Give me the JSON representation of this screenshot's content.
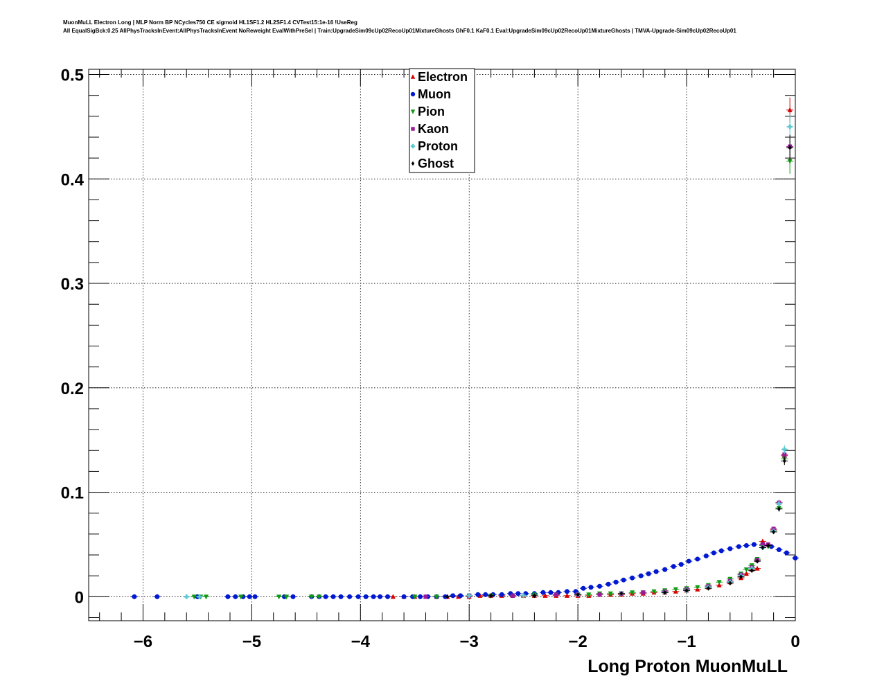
{
  "header": {
    "line1": "MuonMuLL Electron Long | MLP Norm BP NCycles750 CE sigmoid HL1SF1.2 HL2SF1.4 CVTest15:1e-16 !UseReg",
    "line2": "All EqualSigBck:0.25 AllPhysTracksInEvent:AllPhysTracksInEvent NoReweight EvalWithPreSel | Train:UpgradeSim09cUp02RecoUp01MixtureGhosts GhF0.1 KaF0.1 Eval:UpgradeSim09cUp02RecoUp01MixtureGhosts | TMVA-Upgrade-Sim09cUp02RecoUp01"
  },
  "colors": {
    "Electron": "#d40000",
    "Muon": "#0018d0",
    "Pion": "#119a11",
    "Kaon": "#9a1a9a",
    "Proton": "#5ec8d0",
    "Ghost": "#000000"
  },
  "chart_data": {
    "type": "scatter",
    "xlabel": "Long Proton MuonMuLL",
    "ylabel": "",
    "xlim": [
      -6.5,
      0
    ],
    "ylim": [
      -0.023,
      0.505
    ],
    "x_ticks": [
      {
        "value": -6,
        "label": "−6"
      },
      {
        "value": -5,
        "label": "−5"
      },
      {
        "value": -4,
        "label": "−4"
      },
      {
        "value": -3,
        "label": "−3"
      },
      {
        "value": -2,
        "label": "−2"
      },
      {
        "value": -1,
        "label": "−1"
      },
      {
        "value": 0,
        "label": "0"
      }
    ],
    "y_ticks": [
      {
        "value": 0,
        "label": "0"
      },
      {
        "value": 0.1,
        "label": "0.1"
      },
      {
        "value": 0.2,
        "label": "0.2"
      },
      {
        "value": 0.3,
        "label": "0.3"
      },
      {
        "value": 0.4,
        "label": "0.4"
      },
      {
        "value": 0.5,
        "label": "0.5"
      }
    ],
    "grid": true,
    "legend_position": "top-center",
    "series": [
      {
        "name": "Electron",
        "marker": "triangle-up",
        "x": [
          -3.7,
          -3.6,
          -3.5,
          -3.4,
          -3.3,
          -3.2,
          -3.1,
          -3.0,
          -2.9,
          -2.8,
          -2.7,
          -2.6,
          -2.5,
          -2.4,
          -2.3,
          -2.2,
          -2.1,
          -2.0,
          -1.9,
          -1.8,
          -1.7,
          -1.6,
          -1.5,
          -1.4,
          -1.3,
          -1.2,
          -1.1,
          -1.0,
          -0.9,
          -0.8,
          -0.7,
          -0.6,
          -0.5,
          -0.45,
          -0.4,
          -0.35,
          -0.3,
          -0.25,
          -0.2,
          -0.15,
          -0.1,
          -0.05
        ],
        "y": [
          0.0,
          0.0,
          0.0,
          0.0,
          0.0,
          0.0,
          0.0,
          0.0,
          0.001,
          0.001,
          0.001,
          0.001,
          0.001,
          0.001,
          0.001,
          0.001,
          0.001,
          0.001,
          0.001,
          0.002,
          0.002,
          0.002,
          0.003,
          0.003,
          0.004,
          0.004,
          0.005,
          0.006,
          0.007,
          0.009,
          0.011,
          0.014,
          0.018,
          0.022,
          0.026,
          0.027,
          0.053,
          0.05,
          0.064,
          0.09,
          0.135,
          0.466
        ]
      },
      {
        "name": "Muon",
        "marker": "circle",
        "x": [
          -6.08,
          -5.87,
          -5.5,
          -5.22,
          -5.15,
          -5.08,
          -5.02,
          -4.97,
          -4.7,
          -4.62,
          -4.45,
          -4.38,
          -4.32,
          -4.25,
          -4.18,
          -4.1,
          -4.02,
          -3.95,
          -3.88,
          -3.82,
          -3.75,
          -3.6,
          -3.52,
          -3.45,
          -3.38,
          -3.3,
          -3.22,
          -3.15,
          -3.08,
          -3.0,
          -2.92,
          -2.85,
          -2.78,
          -2.7,
          -2.62,
          -2.55,
          -2.48,
          -2.4,
          -2.32,
          -2.25,
          -2.18,
          -2.1,
          -2.02,
          -1.95,
          -1.88,
          -1.8,
          -1.72,
          -1.65,
          -1.58,
          -1.5,
          -1.42,
          -1.35,
          -1.28,
          -1.2,
          -1.12,
          -1.05,
          -0.98,
          -0.9,
          -0.82,
          -0.75,
          -0.68,
          -0.6,
          -0.52,
          -0.45,
          -0.38,
          -0.3,
          -0.22,
          -0.15,
          -0.08,
          0.0
        ],
        "y": [
          0.0,
          0.0,
          0.0,
          0.0,
          0.0,
          0.0,
          0.0,
          0.0,
          0.0,
          0.0,
          0.0,
          0.0,
          0.0,
          0.0,
          0.0,
          0.0,
          0.0,
          0.0,
          0.0,
          0.0,
          0.0,
          0.0,
          0.0,
          0.0,
          0.0,
          0.0,
          0.0,
          0.001,
          0.001,
          0.001,
          0.002,
          0.002,
          0.002,
          0.002,
          0.003,
          0.003,
          0.003,
          0.003,
          0.004,
          0.004,
          0.004,
          0.005,
          0.005,
          0.008,
          0.009,
          0.01,
          0.012,
          0.014,
          0.016,
          0.018,
          0.02,
          0.022,
          0.024,
          0.026,
          0.029,
          0.031,
          0.034,
          0.036,
          0.039,
          0.042,
          0.044,
          0.046,
          0.048,
          0.049,
          0.05,
          0.05,
          0.048,
          0.045,
          0.042,
          0.037
        ]
      },
      {
        "name": "Pion",
        "marker": "triangle-down",
        "x": [
          -5.53,
          -5.47,
          -5.42,
          -5.1,
          -4.75,
          -4.68,
          -4.45,
          -4.38,
          -3.5,
          -3.3,
          -3.0,
          -2.8,
          -2.6,
          -2.4,
          -2.2,
          -2.0,
          -1.9,
          -1.8,
          -1.7,
          -1.6,
          -1.5,
          -1.4,
          -1.3,
          -1.2,
          -1.1,
          -1.0,
          -0.9,
          -0.8,
          -0.7,
          -0.6,
          -0.5,
          -0.45,
          -0.4,
          -0.35,
          -0.3,
          -0.25,
          -0.2,
          -0.15,
          -0.1,
          -0.05
        ],
        "y": [
          0.0,
          0.0,
          0.0,
          0.0,
          0.0,
          0.0,
          0.0,
          0.0,
          0.0,
          0.0,
          0.001,
          0.001,
          0.001,
          0.002,
          0.002,
          0.002,
          0.002,
          0.003,
          0.003,
          0.003,
          0.004,
          0.004,
          0.005,
          0.006,
          0.007,
          0.008,
          0.009,
          0.011,
          0.014,
          0.017,
          0.022,
          0.026,
          0.03,
          0.036,
          0.049,
          0.048,
          0.063,
          0.085,
          0.132,
          0.417
        ]
      },
      {
        "name": "Kaon",
        "marker": "square",
        "x": [
          -3.4,
          -3.0,
          -2.6,
          -2.2,
          -2.0,
          -1.8,
          -1.6,
          -1.4,
          -1.2,
          -1.0,
          -0.8,
          -0.6,
          -0.5,
          -0.4,
          -0.35,
          -0.3,
          -0.25,
          -0.2,
          -0.15,
          -0.1,
          -0.05
        ],
        "y": [
          0.0,
          0.001,
          0.001,
          0.002,
          0.002,
          0.002,
          0.003,
          0.004,
          0.005,
          0.007,
          0.01,
          0.015,
          0.021,
          0.028,
          0.035,
          0.05,
          0.05,
          0.065,
          0.09,
          0.136,
          0.431
        ]
      },
      {
        "name": "Proton",
        "marker": "cross",
        "x": [
          -5.6,
          -5.48,
          -3.0,
          -2.5,
          -2.0,
          -1.6,
          -1.2,
          -1.0,
          -0.8,
          -0.6,
          -0.5,
          -0.4,
          -0.3,
          -0.2,
          -0.15,
          -0.1,
          -0.05
        ],
        "y": [
          0.0,
          0.0,
          0.001,
          0.001,
          0.002,
          0.003,
          0.004,
          0.006,
          0.009,
          0.014,
          0.02,
          0.027,
          0.047,
          0.063,
          0.089,
          0.141,
          0.45
        ]
      },
      {
        "name": "Ghost",
        "marker": "diamond",
        "x": [
          -3.2,
          -2.8,
          -2.4,
          -2.0,
          -1.6,
          -1.2,
          -1.0,
          -0.8,
          -0.6,
          -0.5,
          -0.4,
          -0.35,
          -0.3,
          -0.25,
          -0.2,
          -0.15,
          -0.1,
          -0.05
        ],
        "y": [
          0.0,
          0.001,
          0.001,
          0.002,
          0.003,
          0.004,
          0.006,
          0.008,
          0.013,
          0.019,
          0.025,
          0.034,
          0.047,
          0.049,
          0.062,
          0.084,
          0.13,
          0.43
        ]
      }
    ]
  }
}
